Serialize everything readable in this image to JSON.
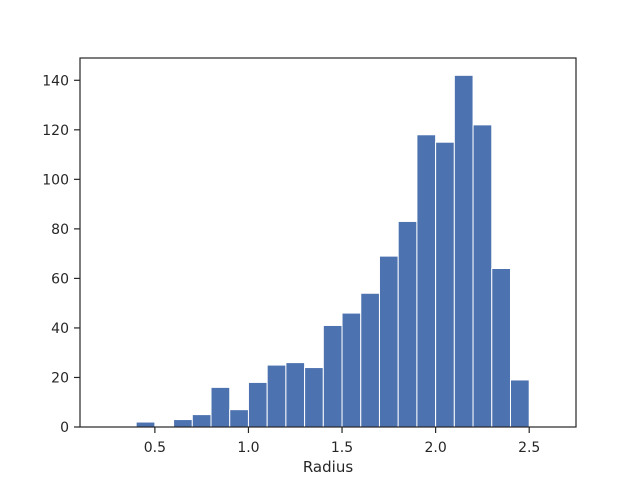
{
  "chart_data": {
    "type": "bar",
    "subtype": "histogram",
    "title": "",
    "xlabel": "Radius",
    "ylabel": "",
    "xlim": [
      0.1,
      2.75
    ],
    "ylim": [
      0,
      149
    ],
    "xticks": [
      0.5,
      1.0,
      1.5,
      2.0,
      2.5
    ],
    "xtick_labels": [
      "0.5",
      "1.0",
      "1.5",
      "2.0",
      "2.5"
    ],
    "yticks": [
      0,
      20,
      40,
      60,
      80,
      100,
      120,
      140
    ],
    "ytick_labels": [
      "0",
      "20",
      "40",
      "60",
      "80",
      "100",
      "120",
      "140"
    ],
    "grid": false,
    "bar_color": "#4c72b0",
    "bin_edges": [
      0.2,
      0.3,
      0.4,
      0.5,
      0.6,
      0.7,
      0.8,
      0.9,
      1.0,
      1.1,
      1.2,
      1.3,
      1.4,
      1.5,
      1.6,
      1.7,
      1.8,
      1.9,
      2.0,
      2.1,
      2.2,
      2.3,
      2.4,
      2.5,
      2.6
    ],
    "values": [
      0,
      0,
      2,
      0,
      3,
      5,
      16,
      7,
      18,
      25,
      26,
      24,
      41,
      46,
      54,
      69,
      83,
      118,
      115,
      142,
      122,
      64,
      19,
      0
    ]
  }
}
